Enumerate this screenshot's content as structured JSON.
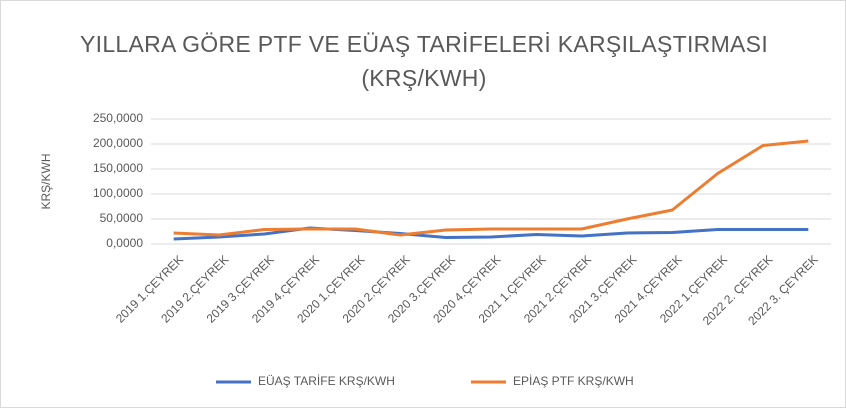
{
  "chart_data": {
    "type": "line",
    "title": "YILLARA GÖRE PTF VE EÜAŞ TARİFELERİ KARŞILAŞTIRMASI (KRŞ/KWH)",
    "ylabel": "KRŞ/KWH",
    "categories": [
      "2019 1.ÇEYREK",
      "2019 2.ÇEYREK",
      "2019 3.ÇEYREK",
      "2019 4.ÇEYREK",
      "2020 1.ÇEYREK",
      "2020 2.ÇEYREK",
      "2020 3.ÇEYREK",
      "2020 4.ÇEYREK",
      "2021 1.ÇEYREK",
      "2021 2.ÇEYREK",
      "2021 3.ÇEYREK",
      "2021 4.ÇEYREK",
      "2022 1.ÇEYREK",
      "2022 2. ÇEYREK",
      "2022 3. ÇEYREK"
    ],
    "series": [
      {
        "name": "EÜAŞ TARİFE KRŞ/KWH",
        "color": "#4472c4",
        "values": [
          10,
          14,
          20,
          32,
          27,
          21,
          13,
          14,
          19,
          16,
          22,
          23,
          29,
          29,
          29
        ]
      },
      {
        "name": "EPİAŞ PTF KRŞ/KWH",
        "color": "#ed7d31",
        "values": [
          22,
          18,
          29,
          30,
          30,
          18,
          28,
          30,
          30,
          30,
          50,
          68,
          141,
          197,
          206
        ]
      }
    ],
    "ylim": [
      0,
      250
    ],
    "yticks": [
      {
        "value": 0,
        "label": "0,0000"
      },
      {
        "value": 50,
        "label": "50,0000"
      },
      {
        "value": 100,
        "label": "100,0000"
      },
      {
        "value": 150,
        "label": "150,0000"
      },
      {
        "value": 200,
        "label": "200,0000"
      },
      {
        "value": 250,
        "label": "250,0000"
      }
    ],
    "grid": true,
    "legend": "bottom"
  }
}
